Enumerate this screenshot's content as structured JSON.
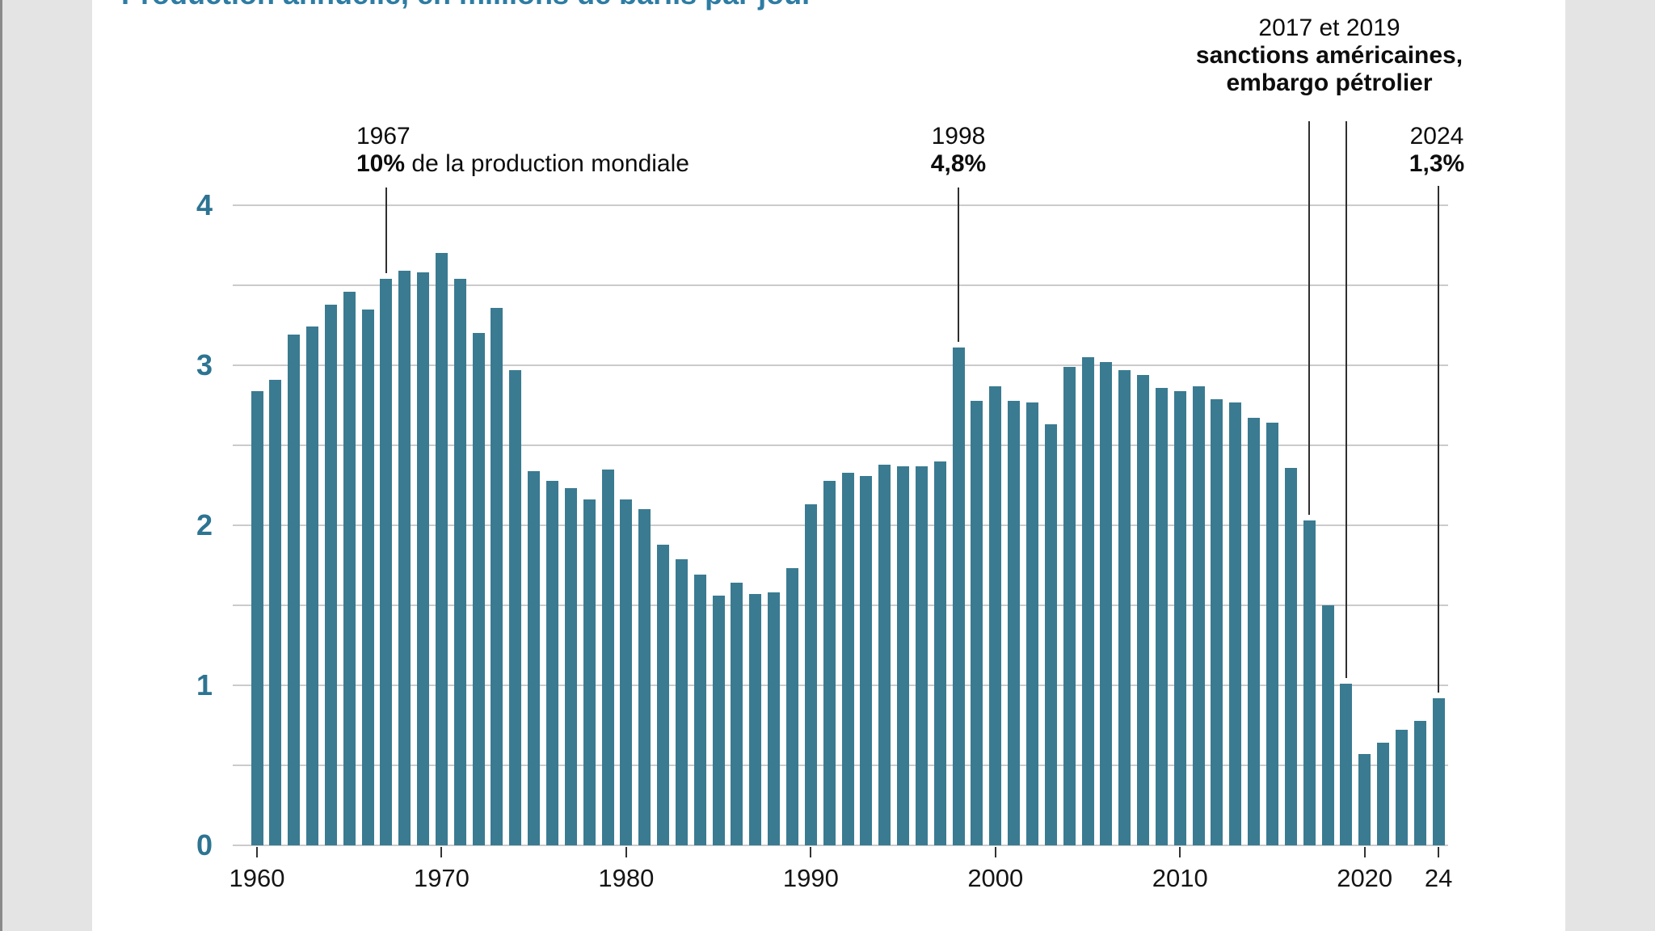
{
  "page": {
    "background": "#ffffff",
    "margin_color": "#e4e4e4"
  },
  "title": "Production annuelle, en millions de barils par jour",
  "colors": {
    "bar": "#3a7b91",
    "title": "#2e7ca3",
    "axis_label": "#2d7492",
    "grid": "#cbcbcb",
    "tick": "#333333",
    "annotation_line": "#2f2f2f",
    "text": "#111111"
  },
  "y_axis": {
    "labels": [
      "4",
      "3",
      "2",
      "1",
      "0"
    ]
  },
  "x_axis": {
    "tick_labels": [
      "1960",
      "1970",
      "1980",
      "1990",
      "2000",
      "2010",
      "2020",
      "24"
    ]
  },
  "annotations": {
    "y1967": {
      "year": "1967",
      "highlight": "10%",
      "rest": " de la production mondiale"
    },
    "y1998": {
      "year": "1998",
      "highlight": "4,8%"
    },
    "sanctions": {
      "years": "2017 et 2019",
      "line2": "sanctions américaines,",
      "line3": "embargo pétrolier"
    },
    "y2024": {
      "year": "2024",
      "highlight": "1,3%"
    }
  },
  "chart_data": {
    "type": "bar",
    "title": "Production annuelle, en millions de barils par jour",
    "ylabel": "millions de barils par jour",
    "x_start_year": 1960,
    "x_end_year": 2024,
    "values": [
      2.84,
      2.91,
      3.19,
      3.24,
      3.38,
      3.46,
      3.35,
      3.54,
      3.59,
      3.58,
      3.7,
      3.54,
      3.2,
      3.36,
      2.97,
      2.34,
      2.28,
      2.23,
      2.16,
      2.35,
      2.16,
      2.1,
      1.88,
      1.79,
      1.69,
      1.56,
      1.64,
      1.57,
      1.58,
      1.73,
      2.13,
      2.28,
      2.33,
      2.31,
      2.38,
      2.37,
      2.37,
      2.4,
      3.11,
      2.78,
      2.87,
      2.78,
      2.77,
      2.63,
      2.99,
      3.05,
      3.02,
      2.97,
      2.94,
      2.86,
      2.84,
      2.87,
      2.79,
      2.77,
      2.67,
      2.64,
      2.36,
      2.03,
      1.5,
      1.01,
      0.57,
      0.64,
      0.72,
      0.78,
      0.92
    ],
    "ylim": [
      0,
      4
    ],
    "grid_interval": 0.5,
    "ytick_interval": 1,
    "grid_on": true,
    "xticks": [
      1960,
      1970,
      1980,
      1990,
      2000,
      2010,
      2020,
      2024
    ],
    "xtick_labels": [
      "1960",
      "1970",
      "1980",
      "1990",
      "2000",
      "2010",
      "2020",
      "24"
    ],
    "annotation_targets": {
      "1967": 3.54,
      "1998": 3.11,
      "2017": 2.03,
      "2019": 1.01,
      "2024": 0.92
    }
  }
}
